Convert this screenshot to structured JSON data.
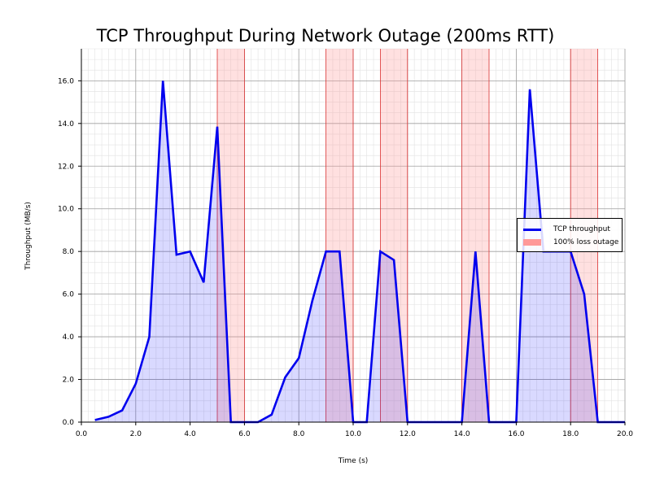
{
  "chart_data": {
    "type": "area",
    "title": "TCP Throughput During Network Outage (200ms RTT)",
    "xlabel": "Time (s)",
    "ylabel": "Throughput (MB/s)",
    "xlim": [
      0,
      20
    ],
    "ylim": [
      0,
      17.5
    ],
    "grid": true,
    "minor_grid": true,
    "legend_position": "center right",
    "x_ticks": [
      "0.0",
      "2.0",
      "4.0",
      "6.0",
      "8.0",
      "10.0",
      "12.0",
      "14.0",
      "16.0",
      "18.0",
      "20.0"
    ],
    "y_ticks": [
      "0.0",
      "2.0",
      "4.0",
      "6.0",
      "8.0",
      "10.0",
      "12.0",
      "14.0",
      "16.0"
    ],
    "series": [
      {
        "name": "TCP throughput",
        "color": "#0000ee",
        "fill": "#ccccff",
        "x": [
          0.5,
          1.0,
          1.5,
          2.0,
          2.5,
          3.0,
          3.5,
          4.0,
          4.5,
          5.0,
          5.5,
          6.0,
          6.5,
          7.0,
          7.5,
          8.0,
          8.5,
          9.0,
          9.5,
          10.0,
          10.5,
          11.0,
          11.5,
          12.0,
          12.5,
          13.0,
          13.5,
          14.0,
          14.5,
          15.0,
          15.5,
          16.0,
          16.5,
          17.0,
          17.5,
          18.0,
          18.5,
          19.0,
          19.5,
          20.0
        ],
        "values": [
          0.1,
          0.25,
          0.55,
          1.8,
          4.0,
          16.0,
          7.85,
          8.0,
          6.55,
          13.85,
          0,
          0,
          0,
          0.35,
          2.1,
          3.0,
          5.7,
          8.0,
          8.0,
          0,
          0,
          8.0,
          7.6,
          0,
          0,
          0,
          0,
          0,
          8.0,
          0,
          0,
          0,
          15.6,
          8.0,
          8.0,
          8.0,
          6.0,
          0,
          0,
          0
        ]
      }
    ],
    "outages": {
      "name": "100% loss outage",
      "color": "#ff9999",
      "intervals": [
        [
          5,
          6
        ],
        [
          9,
          10
        ],
        [
          11,
          12
        ],
        [
          14,
          15
        ],
        [
          18,
          19
        ]
      ]
    }
  },
  "legend": {
    "items": [
      {
        "label": "TCP throughput"
      },
      {
        "label": "100% loss outage"
      }
    ]
  }
}
